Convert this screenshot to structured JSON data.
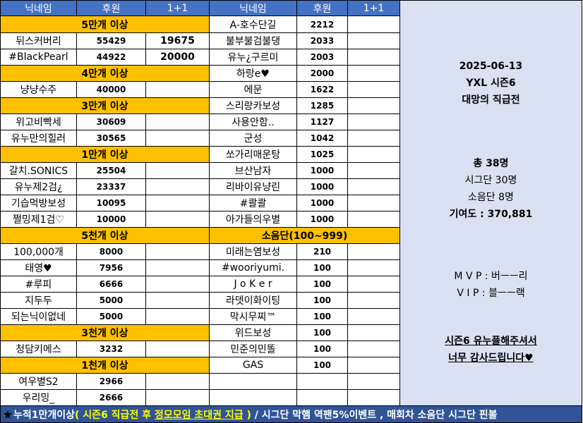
{
  "headers": {
    "nick": "닉네임",
    "amount": "후원",
    "plus": "1+1"
  },
  "left_col": [
    {
      "type": "section",
      "label": "5만개 이상"
    },
    {
      "type": "row",
      "nick": "뒤스커버리",
      "amount": "55429",
      "plus": "19675"
    },
    {
      "type": "row",
      "nick": "#BlackPearl",
      "amount": "44922",
      "plus": "20000"
    },
    {
      "type": "section",
      "label": "4만개 이상"
    },
    {
      "type": "row",
      "nick": "냥냥수주",
      "amount": "40000",
      "plus": ""
    },
    {
      "type": "section",
      "label": "3만개 이상"
    },
    {
      "type": "row",
      "nick": "위고비빡세",
      "amount": "30609",
      "plus": ""
    },
    {
      "type": "row",
      "nick": "유누만의힐러",
      "amount": "30565",
      "plus": ""
    },
    {
      "type": "section",
      "label": "1만개 이상"
    },
    {
      "type": "row",
      "nick": "갈치.SONICS",
      "amount": "25504",
      "plus": ""
    },
    {
      "type": "row",
      "nick": "유누제2검¿",
      "amount": "23337",
      "plus": ""
    },
    {
      "type": "row",
      "nick": "기습먹방보성",
      "amount": "10095",
      "plus": ""
    },
    {
      "type": "row",
      "nick": "쩔밍제1검♡",
      "amount": "10000",
      "plus": ""
    },
    {
      "type": "section",
      "label": "5천개 이상"
    },
    {
      "type": "row",
      "nick": "100,000개",
      "amount": "8000",
      "plus": ""
    },
    {
      "type": "row",
      "nick": "태영♥",
      "amount": "7956",
      "plus": ""
    },
    {
      "type": "row",
      "nick": "#루피",
      "amount": "6666",
      "plus": ""
    },
    {
      "type": "row",
      "nick": "지두두",
      "amount": "5000",
      "plus": ""
    },
    {
      "type": "row",
      "nick": "되는닉이없네",
      "amount": "5000",
      "plus": ""
    },
    {
      "type": "section",
      "label": "3천개 이상"
    },
    {
      "type": "row",
      "nick": "청담키메스",
      "amount": "3232",
      "plus": ""
    },
    {
      "type": "section",
      "label": "1천개 이상"
    },
    {
      "type": "row",
      "nick": "여우별S2",
      "amount": "2966",
      "plus": ""
    },
    {
      "type": "row",
      "nick": "우리밍_",
      "amount": "2666",
      "plus": ""
    }
  ],
  "right_col": [
    {
      "type": "row",
      "nick": "A-호수단길",
      "amount": "2212",
      "plus": ""
    },
    {
      "type": "row",
      "nick": "불부불검불댕",
      "amount": "2033",
      "plus": ""
    },
    {
      "type": "row",
      "nick": "유누¿구르미",
      "amount": "2003",
      "plus": ""
    },
    {
      "type": "row",
      "nick": "하랑e♥",
      "amount": "2000",
      "plus": ""
    },
    {
      "type": "row",
      "nick": "에문",
      "amount": "1622",
      "plus": ""
    },
    {
      "type": "row",
      "nick": "스리랑카보성",
      "amount": "1285",
      "plus": ""
    },
    {
      "type": "row",
      "nick": "사용안함..",
      "amount": "1127",
      "plus": ""
    },
    {
      "type": "row",
      "nick": "군성",
      "amount": "1042",
      "plus": ""
    },
    {
      "type": "row",
      "nick": "쏘가리매운탕",
      "amount": "1025",
      "plus": ""
    },
    {
      "type": "row",
      "nick": "브산남자",
      "amount": "1000",
      "plus": ""
    },
    {
      "type": "row",
      "nick": "리바이유냥린",
      "amount": "1000",
      "plus": ""
    },
    {
      "type": "row",
      "nick": "#콸콸",
      "amount": "1000",
      "plus": ""
    },
    {
      "type": "row",
      "nick": "아가들의우별",
      "amount": "1000",
      "plus": ""
    },
    {
      "type": "section",
      "label": "소음단(100~999)"
    },
    {
      "type": "row",
      "nick": "미래는염보성",
      "amount": "210",
      "plus": ""
    },
    {
      "type": "row",
      "nick": "#wooriyumi.",
      "amount": "100",
      "plus": ""
    },
    {
      "type": "row",
      "nick": "J o K e r",
      "amount": "100",
      "plus": ""
    },
    {
      "type": "row",
      "nick": "라뎃이화이팅",
      "amount": "100",
      "plus": ""
    },
    {
      "type": "row",
      "nick": "막시무찌™",
      "amount": "100",
      "plus": ""
    },
    {
      "type": "row",
      "nick": "위드보성",
      "amount": "100",
      "plus": ""
    },
    {
      "type": "row",
      "nick": "민준의민똘",
      "amount": "100",
      "plus": ""
    },
    {
      "type": "row",
      "nick": "GAS",
      "amount": "100",
      "plus": ""
    },
    {
      "type": "empty"
    },
    {
      "type": "empty"
    }
  ],
  "side": {
    "date": "2025-06-13",
    "season": "YXL 시즌6",
    "event": "대망의 직급전",
    "total": "총 38명",
    "sigdan": "시그단 30명",
    "soeum": "소음단 8명",
    "contribution": "기여도  : 370,881",
    "mvp": "M V P : 버ㅡㅡ리",
    "vip": "V I P : 블ㅡㅡ랙",
    "thanks1": "시즌6 유누플해주셔서",
    "thanks2": "너무 감사드립니다♥"
  },
  "footer": {
    "part1": "누적1만개이상",
    "part2": "( 시즌6 직급전 후 ",
    "part3": "정모모임 초대권 지급",
    "part4": " )",
    "part5": " / 시그단 막햄 역팬5%이벤트 , 매회차 소음단 시그단 핀볼"
  },
  "colors": {
    "header_bg": "#4472c4",
    "section_bg": "#ffc000",
    "side_bg": "#d9e1f2",
    "footer_bg": "#305496",
    "footer_highlight": "#ffff00"
  },
  "icons": {
    "footer": "star-burst-icon"
  }
}
